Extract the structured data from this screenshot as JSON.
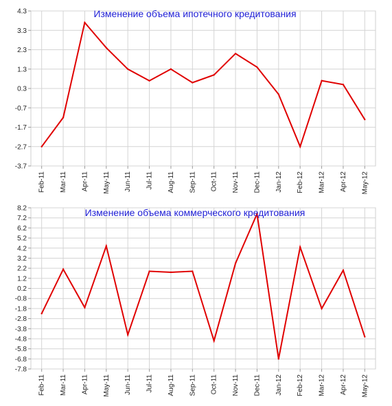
{
  "chart_data": [
    {
      "type": "line",
      "title": "Изменение объема ипотечного кредитования",
      "title_color": "#1f1fd6",
      "line_color": "#e00000",
      "grid": true,
      "categories": [
        "Feb-11",
        "Mar-11",
        "Apr-11",
        "May-11",
        "Jun-11",
        "Jul-11",
        "Aug-11",
        "Sep-11",
        "Oct-11",
        "Nov-11",
        "Dec-11",
        "Jan-12",
        "Feb-12",
        "Mar-12",
        "Apr-12",
        "May-12"
      ],
      "values": [
        -2.7,
        -1.2,
        3.7,
        2.4,
        1.3,
        0.7,
        1.3,
        0.6,
        1.0,
        2.1,
        1.4,
        0.0,
        -2.7,
        0.7,
        0.5,
        -1.3
      ],
      "ylim": [
        -3.7,
        4.3
      ],
      "yticks": [
        "4.3",
        "3.3",
        "2.3",
        "1.3",
        "0.3",
        "-0.7",
        "-1.7",
        "-2.7",
        "-3.7"
      ]
    },
    {
      "type": "line",
      "title": "Изменение объема коммерческого кредитования",
      "title_color": "#1f1fd6",
      "line_color": "#e00000",
      "grid": true,
      "categories": [
        "Feb-11",
        "Mar-11",
        "Apr-11",
        "May-11",
        "Jun-11",
        "Jul-11",
        "Aug-11",
        "Sep-11",
        "Oct-11",
        "Nov-11",
        "Dec-11",
        "Jan-12",
        "Feb-12",
        "Mar-12",
        "Apr-12",
        "May-12"
      ],
      "values": [
        -2.3,
        2.1,
        -1.7,
        4.4,
        -4.4,
        1.9,
        1.8,
        1.9,
        -5.0,
        2.7,
        7.6,
        -6.8,
        4.3,
        -1.8,
        2.0,
        -4.6
      ],
      "ylim": [
        -7.8,
        8.2
      ],
      "yticks": [
        "8.2",
        "7.2",
        "6.2",
        "5.2",
        "4.2",
        "3.2",
        "2.2",
        "1.2",
        "0.2",
        "-0.8",
        "-1.8",
        "-2.8",
        "-3.8",
        "-4.8",
        "-5.8",
        "-6.8",
        "-7.8"
      ]
    }
  ]
}
